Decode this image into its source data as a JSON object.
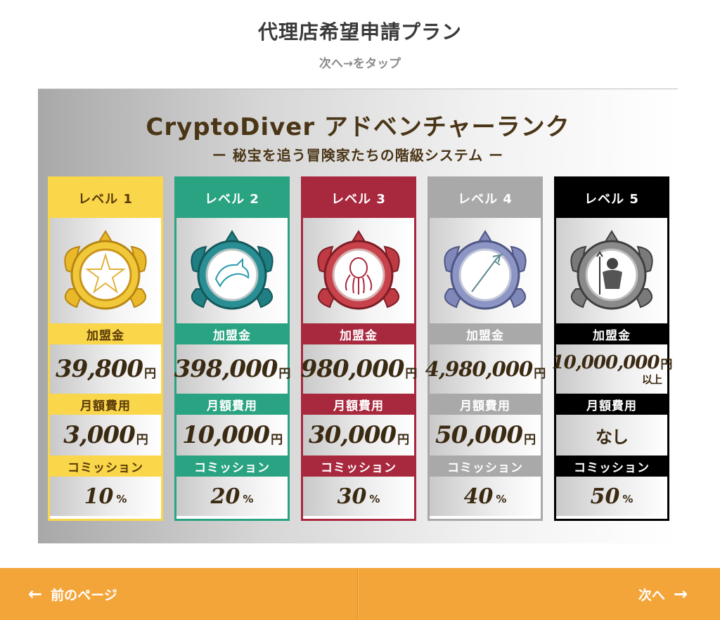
{
  "page": {
    "title": "代理店希望申請プラン",
    "subtitle": "次へ→をタップ"
  },
  "banner": {
    "title": "CryptoDiver アドベンチャーランク",
    "subtitle": "ー 秘宝を追う冒険家たちの階級システム ー"
  },
  "labels": {
    "fee": "加盟金",
    "monthly": "月額費用",
    "commission": "コミッション",
    "yen": "円",
    "percent": "%"
  },
  "levels": [
    {
      "name": "レベル 1",
      "icon": "starfish-medal-icon",
      "fee": "39,800",
      "monthly": "3,000",
      "commission": "10",
      "color": "#f9d64a",
      "text": "#5a3a08"
    },
    {
      "name": "レベル 2",
      "icon": "dolphin-medal-icon",
      "fee": "398,000",
      "monthly": "10,000",
      "commission": "20",
      "color": "#2aa382",
      "text": "#ffffff"
    },
    {
      "name": "レベル 3",
      "icon": "octopus-medal-icon",
      "fee": "980,000",
      "monthly": "30,000",
      "commission": "30",
      "color": "#a8283e",
      "text": "#ffffff"
    },
    {
      "name": "レベル 4",
      "icon": "trident-medal-icon",
      "fee": "4,980,000",
      "monthly": "50,000",
      "commission": "40",
      "color": "#a9a9a9",
      "text": "#ffffff"
    },
    {
      "name": "レベル 5",
      "icon": "poseidon-medal-icon",
      "fee": "10,000,000",
      "fee_suffix": "以上",
      "monthly": "なし",
      "commission": "50",
      "color": "#000000",
      "text": "#ffffff"
    }
  ],
  "footer": {
    "prev_label": "前のページ",
    "next_label": "次へ",
    "prev_icon": "arrow-left-icon",
    "next_icon": "arrow-right-icon"
  },
  "colors": {
    "footer_bg": "#f4a53a",
    "banner_text": "#4a3516"
  }
}
